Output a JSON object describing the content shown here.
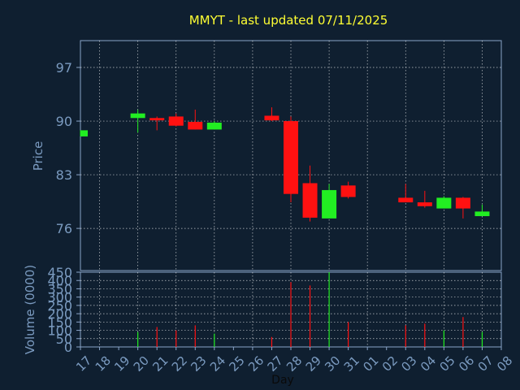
{
  "chart_data": {
    "type": "candlestick",
    "title": "MMYT - last updated 07/11/2025",
    "xlabel": "Day",
    "ylabel": "Price",
    "volume_label": "Volume (0000)",
    "price_ylim": [
      70.5,
      100.5
    ],
    "price_ticks": [
      76,
      83,
      90,
      97
    ],
    "volume_ylim": [
      0,
      450
    ],
    "volume_ticks": [
      0,
      50,
      100,
      150,
      200,
      250,
      300,
      350,
      400,
      450
    ],
    "grid": true,
    "up_color": "#22ee22",
    "down_color": "#ff1111",
    "x_tick_labels": [
      "17",
      "18",
      "19",
      "20",
      "21",
      "22",
      "23",
      "24",
      "25",
      "26",
      "27",
      "28",
      "29",
      "30",
      "31",
      "01",
      "02",
      "03",
      "04",
      "05",
      "06",
      "07",
      "08"
    ],
    "candles": [
      {
        "day": "17",
        "open": 88.0,
        "high": 88.8,
        "low": 88.0,
        "close": 88.8,
        "volume": 0
      },
      {
        "day": "20",
        "open": 90.4,
        "high": 91.5,
        "low": 88.5,
        "close": 91.0,
        "volume": 90
      },
      {
        "day": "21",
        "open": 90.4,
        "high": 90.6,
        "low": 88.8,
        "close": 90.1,
        "volume": 120
      },
      {
        "day": "22",
        "open": 90.6,
        "high": 91.0,
        "low": 89.3,
        "close": 89.4,
        "volume": 100
      },
      {
        "day": "23",
        "open": 89.9,
        "high": 91.5,
        "low": 88.9,
        "close": 88.9,
        "volume": 130
      },
      {
        "day": "24",
        "open": 88.9,
        "high": 90.0,
        "low": 88.9,
        "close": 89.8,
        "volume": 80
      },
      {
        "day": "27",
        "open": 90.7,
        "high": 91.8,
        "low": 90.0,
        "close": 90.1,
        "volume": 60
      },
      {
        "day": "28",
        "open": 90.0,
        "high": 90.6,
        "low": 79.4,
        "close": 80.5,
        "volume": 390
      },
      {
        "day": "29",
        "open": 81.9,
        "high": 84.2,
        "low": 76.9,
        "close": 77.4,
        "volume": 370
      },
      {
        "day": "30",
        "open": 77.3,
        "high": 81.8,
        "low": 77.3,
        "close": 81.0,
        "volume": 450
      },
      {
        "day": "31",
        "open": 81.6,
        "high": 82.1,
        "low": 79.9,
        "close": 80.1,
        "volume": 150
      },
      {
        "day": "03",
        "open": 80.0,
        "high": 81.8,
        "low": 79.4,
        "close": 79.4,
        "volume": 130
      },
      {
        "day": "04",
        "open": 79.4,
        "high": 80.9,
        "low": 78.7,
        "close": 78.9,
        "volume": 140
      },
      {
        "day": "05",
        "open": 78.6,
        "high": 80.2,
        "low": 78.6,
        "close": 80.0,
        "volume": 100
      },
      {
        "day": "06",
        "open": 80.0,
        "high": 80.1,
        "low": 77.3,
        "close": 78.6,
        "volume": 180
      },
      {
        "day": "07",
        "open": 77.6,
        "high": 79.1,
        "low": 77.6,
        "close": 78.2,
        "volume": 90
      }
    ]
  }
}
